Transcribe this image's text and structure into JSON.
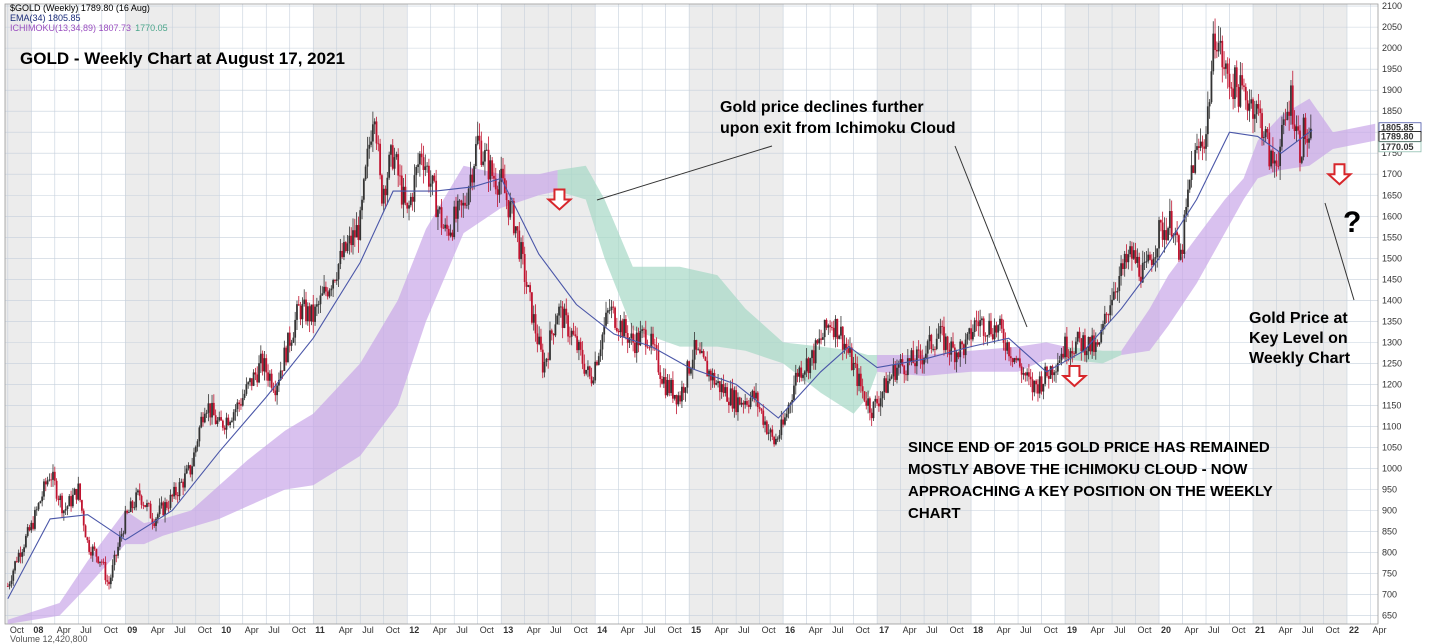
{
  "chart_data": {
    "type": "candlestick",
    "title": "GOLD - Weekly Chart at August 17, 2021",
    "legend": {
      "symbol": "$GOLD (Weekly) 1789.80 (16 Aug)",
      "ema": "EMA(34) 1805.85",
      "ichimoku": "ICHIMOKU(13,34,89) 1807.73",
      "ichimoku_value2": "1770.05",
      "volume": "Volume 12,420,800"
    },
    "ylim": [
      630,
      2105
    ],
    "y_ticks": [
      650,
      700,
      750,
      800,
      850,
      900,
      950,
      1000,
      1050,
      1100,
      1150,
      1200,
      1250,
      1300,
      1350,
      1400,
      1450,
      1500,
      1550,
      1600,
      1650,
      1700,
      1750,
      1800,
      1850,
      1900,
      1950,
      2000,
      2050,
      2100
    ],
    "x_range": [
      2007.72,
      2022.33
    ],
    "x_ticks": [
      {
        "label": "Oct",
        "t": 2007.75
      },
      {
        "label": "08",
        "t": 2008.0
      },
      {
        "label": "Apr",
        "t": 2008.25
      },
      {
        "label": "Jul",
        "t": 2008.5
      },
      {
        "label": "Oct",
        "t": 2008.75
      },
      {
        "label": "09",
        "t": 2009.0
      },
      {
        "label": "Apr",
        "t": 2009.25
      },
      {
        "label": "Jul",
        "t": 2009.5
      },
      {
        "label": "Oct",
        "t": 2009.75
      },
      {
        "label": "10",
        "t": 2010.0
      },
      {
        "label": "Apr",
        "t": 2010.25
      },
      {
        "label": "Jul",
        "t": 2010.5
      },
      {
        "label": "Oct",
        "t": 2010.75
      },
      {
        "label": "11",
        "t": 2011.0
      },
      {
        "label": "Apr",
        "t": 2011.25
      },
      {
        "label": "Jul",
        "t": 2011.5
      },
      {
        "label": "Oct",
        "t": 2011.75
      },
      {
        "label": "12",
        "t": 2012.0
      },
      {
        "label": "Apr",
        "t": 2012.25
      },
      {
        "label": "Jul",
        "t": 2012.5
      },
      {
        "label": "Oct",
        "t": 2012.75
      },
      {
        "label": "13",
        "t": 2013.0
      },
      {
        "label": "Apr",
        "t": 2013.25
      },
      {
        "label": "Jul",
        "t": 2013.5
      },
      {
        "label": "Oct",
        "t": 2013.75
      },
      {
        "label": "14",
        "t": 2014.0
      },
      {
        "label": "Apr",
        "t": 2014.25
      },
      {
        "label": "Jul",
        "t": 2014.5
      },
      {
        "label": "Oct",
        "t": 2014.75
      },
      {
        "label": "15",
        "t": 2015.0
      },
      {
        "label": "Apr",
        "t": 2015.25
      },
      {
        "label": "Jul",
        "t": 2015.5
      },
      {
        "label": "Oct",
        "t": 2015.75
      },
      {
        "label": "16",
        "t": 2016.0
      },
      {
        "label": "Apr",
        "t": 2016.25
      },
      {
        "label": "Jul",
        "t": 2016.5
      },
      {
        "label": "Oct",
        "t": 2016.75
      },
      {
        "label": "17",
        "t": 2017.0
      },
      {
        "label": "Apr",
        "t": 2017.25
      },
      {
        "label": "Jul",
        "t": 2017.5
      },
      {
        "label": "Oct",
        "t": 2017.75
      },
      {
        "label": "18",
        "t": 2018.0
      },
      {
        "label": "Apr",
        "t": 2018.25
      },
      {
        "label": "Jul",
        "t": 2018.5
      },
      {
        "label": "Oct",
        "t": 2018.75
      },
      {
        "label": "19",
        "t": 2019.0
      },
      {
        "label": "Apr",
        "t": 2019.25
      },
      {
        "label": "Jul",
        "t": 2019.5
      },
      {
        "label": "Oct",
        "t": 2019.75
      },
      {
        "label": "20",
        "t": 2020.0
      },
      {
        "label": "Apr",
        "t": 2020.25
      },
      {
        "label": "Jul",
        "t": 2020.5
      },
      {
        "label": "Oct",
        "t": 2020.75
      },
      {
        "label": "21",
        "t": 2021.0
      },
      {
        "label": "Apr",
        "t": 2021.25
      },
      {
        "label": "Jul",
        "t": 2021.5
      },
      {
        "label": "Oct",
        "t": 2021.75
      },
      {
        "label": "22",
        "t": 2022.0
      },
      {
        "label": "Apr",
        "t": 2022.25
      }
    ],
    "right_labels": [
      {
        "text": "1805.85",
        "value": 1805.85,
        "color": "#4a56a8"
      },
      {
        "text": "1789.80",
        "value": 1789.8,
        "color": "#000000"
      },
      {
        "text": "1770.05",
        "value": 1770.05,
        "color": "#8fbfb0"
      }
    ],
    "price_path": [
      {
        "t": 2007.75,
        "p": 720
      },
      {
        "t": 2007.85,
        "p": 790
      },
      {
        "t": 2008.0,
        "p": 860
      },
      {
        "t": 2008.15,
        "p": 960
      },
      {
        "t": 2008.2,
        "p": 990
      },
      {
        "t": 2008.35,
        "p": 900
      },
      {
        "t": 2008.5,
        "p": 950
      },
      {
        "t": 2008.6,
        "p": 820
      },
      {
        "t": 2008.75,
        "p": 780
      },
      {
        "t": 2008.82,
        "p": 720
      },
      {
        "t": 2009.0,
        "p": 880
      },
      {
        "t": 2009.15,
        "p": 940
      },
      {
        "t": 2009.3,
        "p": 880
      },
      {
        "t": 2009.5,
        "p": 930
      },
      {
        "t": 2009.7,
        "p": 1000
      },
      {
        "t": 2009.85,
        "p": 1160
      },
      {
        "t": 2010.0,
        "p": 1100
      },
      {
        "t": 2010.2,
        "p": 1150
      },
      {
        "t": 2010.45,
        "p": 1250
      },
      {
        "t": 2010.6,
        "p": 1200
      },
      {
        "t": 2010.85,
        "p": 1380
      },
      {
        "t": 2011.0,
        "p": 1360
      },
      {
        "t": 2011.3,
        "p": 1500
      },
      {
        "t": 2011.5,
        "p": 1580
      },
      {
        "t": 2011.65,
        "p": 1880
      },
      {
        "t": 2011.72,
        "p": 1650
      },
      {
        "t": 2011.85,
        "p": 1750
      },
      {
        "t": 2012.0,
        "p": 1600
      },
      {
        "t": 2012.15,
        "p": 1760
      },
      {
        "t": 2012.4,
        "p": 1560
      },
      {
        "t": 2012.6,
        "p": 1620
      },
      {
        "t": 2012.75,
        "p": 1780
      },
      {
        "t": 2012.9,
        "p": 1700
      },
      {
        "t": 2013.0,
        "p": 1680
      },
      {
        "t": 2013.15,
        "p": 1580
      },
      {
        "t": 2013.3,
        "p": 1400
      },
      {
        "t": 2013.45,
        "p": 1240
      },
      {
        "t": 2013.6,
        "p": 1380
      },
      {
        "t": 2013.75,
        "p": 1320
      },
      {
        "t": 2013.95,
        "p": 1210
      },
      {
        "t": 2014.15,
        "p": 1380
      },
      {
        "t": 2014.4,
        "p": 1300
      },
      {
        "t": 2014.55,
        "p": 1320
      },
      {
        "t": 2014.75,
        "p": 1200
      },
      {
        "t": 2014.9,
        "p": 1170
      },
      {
        "t": 2015.05,
        "p": 1280
      },
      {
        "t": 2015.3,
        "p": 1200
      },
      {
        "t": 2015.5,
        "p": 1160
      },
      {
        "t": 2015.7,
        "p": 1170
      },
      {
        "t": 2015.9,
        "p": 1060
      },
      {
        "t": 2016.0,
        "p": 1100
      },
      {
        "t": 2016.15,
        "p": 1230
      },
      {
        "t": 2016.3,
        "p": 1260
      },
      {
        "t": 2016.5,
        "p": 1350
      },
      {
        "t": 2016.6,
        "p": 1330
      },
      {
        "t": 2016.85,
        "p": 1180
      },
      {
        "t": 2016.95,
        "p": 1140
      },
      {
        "t": 2017.2,
        "p": 1240
      },
      {
        "t": 2017.45,
        "p": 1260
      },
      {
        "t": 2017.65,
        "p": 1320
      },
      {
        "t": 2017.8,
        "p": 1280
      },
      {
        "t": 2017.95,
        "p": 1290
      },
      {
        "t": 2018.05,
        "p": 1350
      },
      {
        "t": 2018.3,
        "p": 1330
      },
      {
        "t": 2018.5,
        "p": 1250
      },
      {
        "t": 2018.65,
        "p": 1190
      },
      {
        "t": 2018.8,
        "p": 1220
      },
      {
        "t": 2019.0,
        "p": 1290
      },
      {
        "t": 2019.2,
        "p": 1300
      },
      {
        "t": 2019.35,
        "p": 1280
      },
      {
        "t": 2019.5,
        "p": 1420
      },
      {
        "t": 2019.7,
        "p": 1510
      },
      {
        "t": 2019.85,
        "p": 1460
      },
      {
        "t": 2020.0,
        "p": 1560
      },
      {
        "t": 2020.15,
        "p": 1590
      },
      {
        "t": 2020.22,
        "p": 1480
      },
      {
        "t": 2020.35,
        "p": 1720
      },
      {
        "t": 2020.5,
        "p": 1800
      },
      {
        "t": 2020.6,
        "p": 2050
      },
      {
        "t": 2020.7,
        "p": 1940
      },
      {
        "t": 2020.85,
        "p": 1900
      },
      {
        "t": 2021.0,
        "p": 1870
      },
      {
        "t": 2021.1,
        "p": 1820
      },
      {
        "t": 2021.2,
        "p": 1720
      },
      {
        "t": 2021.3,
        "p": 1770
      },
      {
        "t": 2021.4,
        "p": 1890
      },
      {
        "t": 2021.5,
        "p": 1760
      },
      {
        "t": 2021.55,
        "p": 1810
      },
      {
        "t": 2021.6,
        "p": 1750
      },
      {
        "t": 2021.63,
        "p": 1790
      }
    ],
    "ema_path": [
      {
        "t": 2007.75,
        "p": 690
      },
      {
        "t": 2008.2,
        "p": 880
      },
      {
        "t": 2008.6,
        "p": 890
      },
      {
        "t": 2009.0,
        "p": 830
      },
      {
        "t": 2009.5,
        "p": 900
      },
      {
        "t": 2010.0,
        "p": 1040
      },
      {
        "t": 2010.5,
        "p": 1170
      },
      {
        "t": 2011.0,
        "p": 1310
      },
      {
        "t": 2011.5,
        "p": 1490
      },
      {
        "t": 2011.85,
        "p": 1660
      },
      {
        "t": 2012.3,
        "p": 1660
      },
      {
        "t": 2012.7,
        "p": 1670
      },
      {
        "t": 2013.0,
        "p": 1690
      },
      {
        "t": 2013.4,
        "p": 1510
      },
      {
        "t": 2013.8,
        "p": 1390
      },
      {
        "t": 2014.2,
        "p": 1320
      },
      {
        "t": 2014.6,
        "p": 1290
      },
      {
        "t": 2015.0,
        "p": 1240
      },
      {
        "t": 2015.5,
        "p": 1200
      },
      {
        "t": 2015.95,
        "p": 1120
      },
      {
        "t": 2016.4,
        "p": 1230
      },
      {
        "t": 2016.7,
        "p": 1290
      },
      {
        "t": 2017.0,
        "p": 1240
      },
      {
        "t": 2017.5,
        "p": 1260
      },
      {
        "t": 2018.0,
        "p": 1290
      },
      {
        "t": 2018.4,
        "p": 1310
      },
      {
        "t": 2018.8,
        "p": 1230
      },
      {
        "t": 2019.2,
        "p": 1280
      },
      {
        "t": 2019.6,
        "p": 1380
      },
      {
        "t": 2020.0,
        "p": 1500
      },
      {
        "t": 2020.4,
        "p": 1640
      },
      {
        "t": 2020.75,
        "p": 1800
      },
      {
        "t": 2021.05,
        "p": 1790
      },
      {
        "t": 2021.3,
        "p": 1750
      },
      {
        "t": 2021.63,
        "p": 1805
      }
    ],
    "cloud_pink": [
      {
        "t": 2007.75,
        "a": 630,
        "b": 640
      },
      {
        "t": 2008.3,
        "a": 650,
        "b": 680
      },
      {
        "t": 2008.6,
        "a": 720,
        "b": 780
      },
      {
        "t": 2009.0,
        "a": 820,
        "b": 900
      },
      {
        "t": 2009.2,
        "a": 820,
        "b": 870
      },
      {
        "t": 2009.4,
        "a": 840,
        "b": 880
      },
      {
        "t": 2009.7,
        "a": 860,
        "b": 900
      },
      {
        "t": 2010.0,
        "a": 880,
        "b": 960
      },
      {
        "t": 2010.3,
        "a": 910,
        "b": 1020
      },
      {
        "t": 2010.7,
        "a": 950,
        "b": 1090
      },
      {
        "t": 2011.0,
        "a": 960,
        "b": 1130
      },
      {
        "t": 2011.5,
        "a": 1030,
        "b": 1250
      },
      {
        "t": 2011.9,
        "a": 1150,
        "b": 1400
      },
      {
        "t": 2012.2,
        "a": 1350,
        "b": 1570
      },
      {
        "t": 2012.6,
        "a": 1560,
        "b": 1720
      },
      {
        "t": 2013.0,
        "a": 1620,
        "b": 1700
      },
      {
        "t": 2013.4,
        "a": 1650,
        "b": 1700
      },
      {
        "t": 2013.6,
        "a": 1660,
        "b": 1710
      }
    ],
    "cloud_green": [
      {
        "t": 2013.6,
        "a": 1660,
        "b": 1710
      },
      {
        "t": 2013.9,
        "a": 1640,
        "b": 1720
      },
      {
        "t": 2014.1,
        "a": 1500,
        "b": 1640
      },
      {
        "t": 2014.4,
        "a": 1330,
        "b": 1480
      },
      {
        "t": 2014.9,
        "a": 1290,
        "b": 1480
      },
      {
        "t": 2015.3,
        "a": 1290,
        "b": 1460
      },
      {
        "t": 2015.6,
        "a": 1280,
        "b": 1380
      },
      {
        "t": 2016.0,
        "a": 1250,
        "b": 1300
      },
      {
        "t": 2016.4,
        "a": 1180,
        "b": 1290
      },
      {
        "t": 2016.75,
        "a": 1130,
        "b": 1280
      },
      {
        "t": 2016.9,
        "a": 1170,
        "b": 1270
      },
      {
        "t": 2017.0,
        "a": 1230,
        "b": 1270
      }
    ],
    "cloud_pink2": [
      {
        "t": 2017.0,
        "a": 1230,
        "b": 1270
      },
      {
        "t": 2017.5,
        "a": 1220,
        "b": 1270
      },
      {
        "t": 2018.0,
        "a": 1230,
        "b": 1280
      },
      {
        "t": 2018.5,
        "a": 1230,
        "b": 1290
      },
      {
        "t": 2018.8,
        "a": 1260,
        "b": 1300
      },
      {
        "t": 2019.0,
        "a": 1260,
        "b": 1290
      }
    ],
    "cloud_green2": [
      {
        "t": 2019.0,
        "a": 1260,
        "b": 1290
      },
      {
        "t": 2019.4,
        "a": 1250,
        "b": 1280
      },
      {
        "t": 2019.6,
        "a": 1270,
        "b": 1280
      }
    ],
    "cloud_pink3": [
      {
        "t": 2019.6,
        "a": 1270,
        "b": 1280
      },
      {
        "t": 2019.9,
        "a": 1280,
        "b": 1380
      },
      {
        "t": 2020.1,
        "a": 1340,
        "b": 1460
      },
      {
        "t": 2020.4,
        "a": 1440,
        "b": 1550
      },
      {
        "t": 2020.7,
        "a": 1560,
        "b": 1640
      },
      {
        "t": 2020.9,
        "a": 1640,
        "b": 1690
      },
      {
        "t": 2021.05,
        "a": 1690,
        "b": 1780
      },
      {
        "t": 2021.3,
        "a": 1710,
        "b": 1840
      },
      {
        "t": 2021.6,
        "a": 1720,
        "b": 1880
      },
      {
        "t": 2021.85,
        "a": 1760,
        "b": 1800
      },
      {
        "t": 2022.3,
        "a": 1780,
        "b": 1820
      }
    ]
  },
  "annotations": {
    "exit_cloud": [
      "Gold price declines further",
      "upon exit from Ichimoku Cloud"
    ],
    "key_level": [
      "Gold Price at",
      "Key Level on",
      "Weekly Chart"
    ],
    "since_2015": [
      "SINCE END OF 2015 GOLD PRICE HAS REMAINED",
      "MOSTLY ABOVE THE ICHIMOKU CLOUD - NOW",
      "APPROACHING A KEY POSITION ON THE WEEKLY",
      "CHART"
    ],
    "question_mark": "?",
    "arrows": [
      {
        "t": 2013.62,
        "p": 1640
      },
      {
        "t": 2019.1,
        "p": 1220
      },
      {
        "t": 2021.92,
        "p": 1700
      }
    ]
  },
  "colors": {
    "candle_up": "#333333",
    "candle_down": "#c0132f",
    "ema": "#4a56a8",
    "cloud_pink": "#c9a6e8",
    "cloud_green": "#a6d8c6",
    "arrow": "#d7262b",
    "grid": "#c6d0dc"
  }
}
